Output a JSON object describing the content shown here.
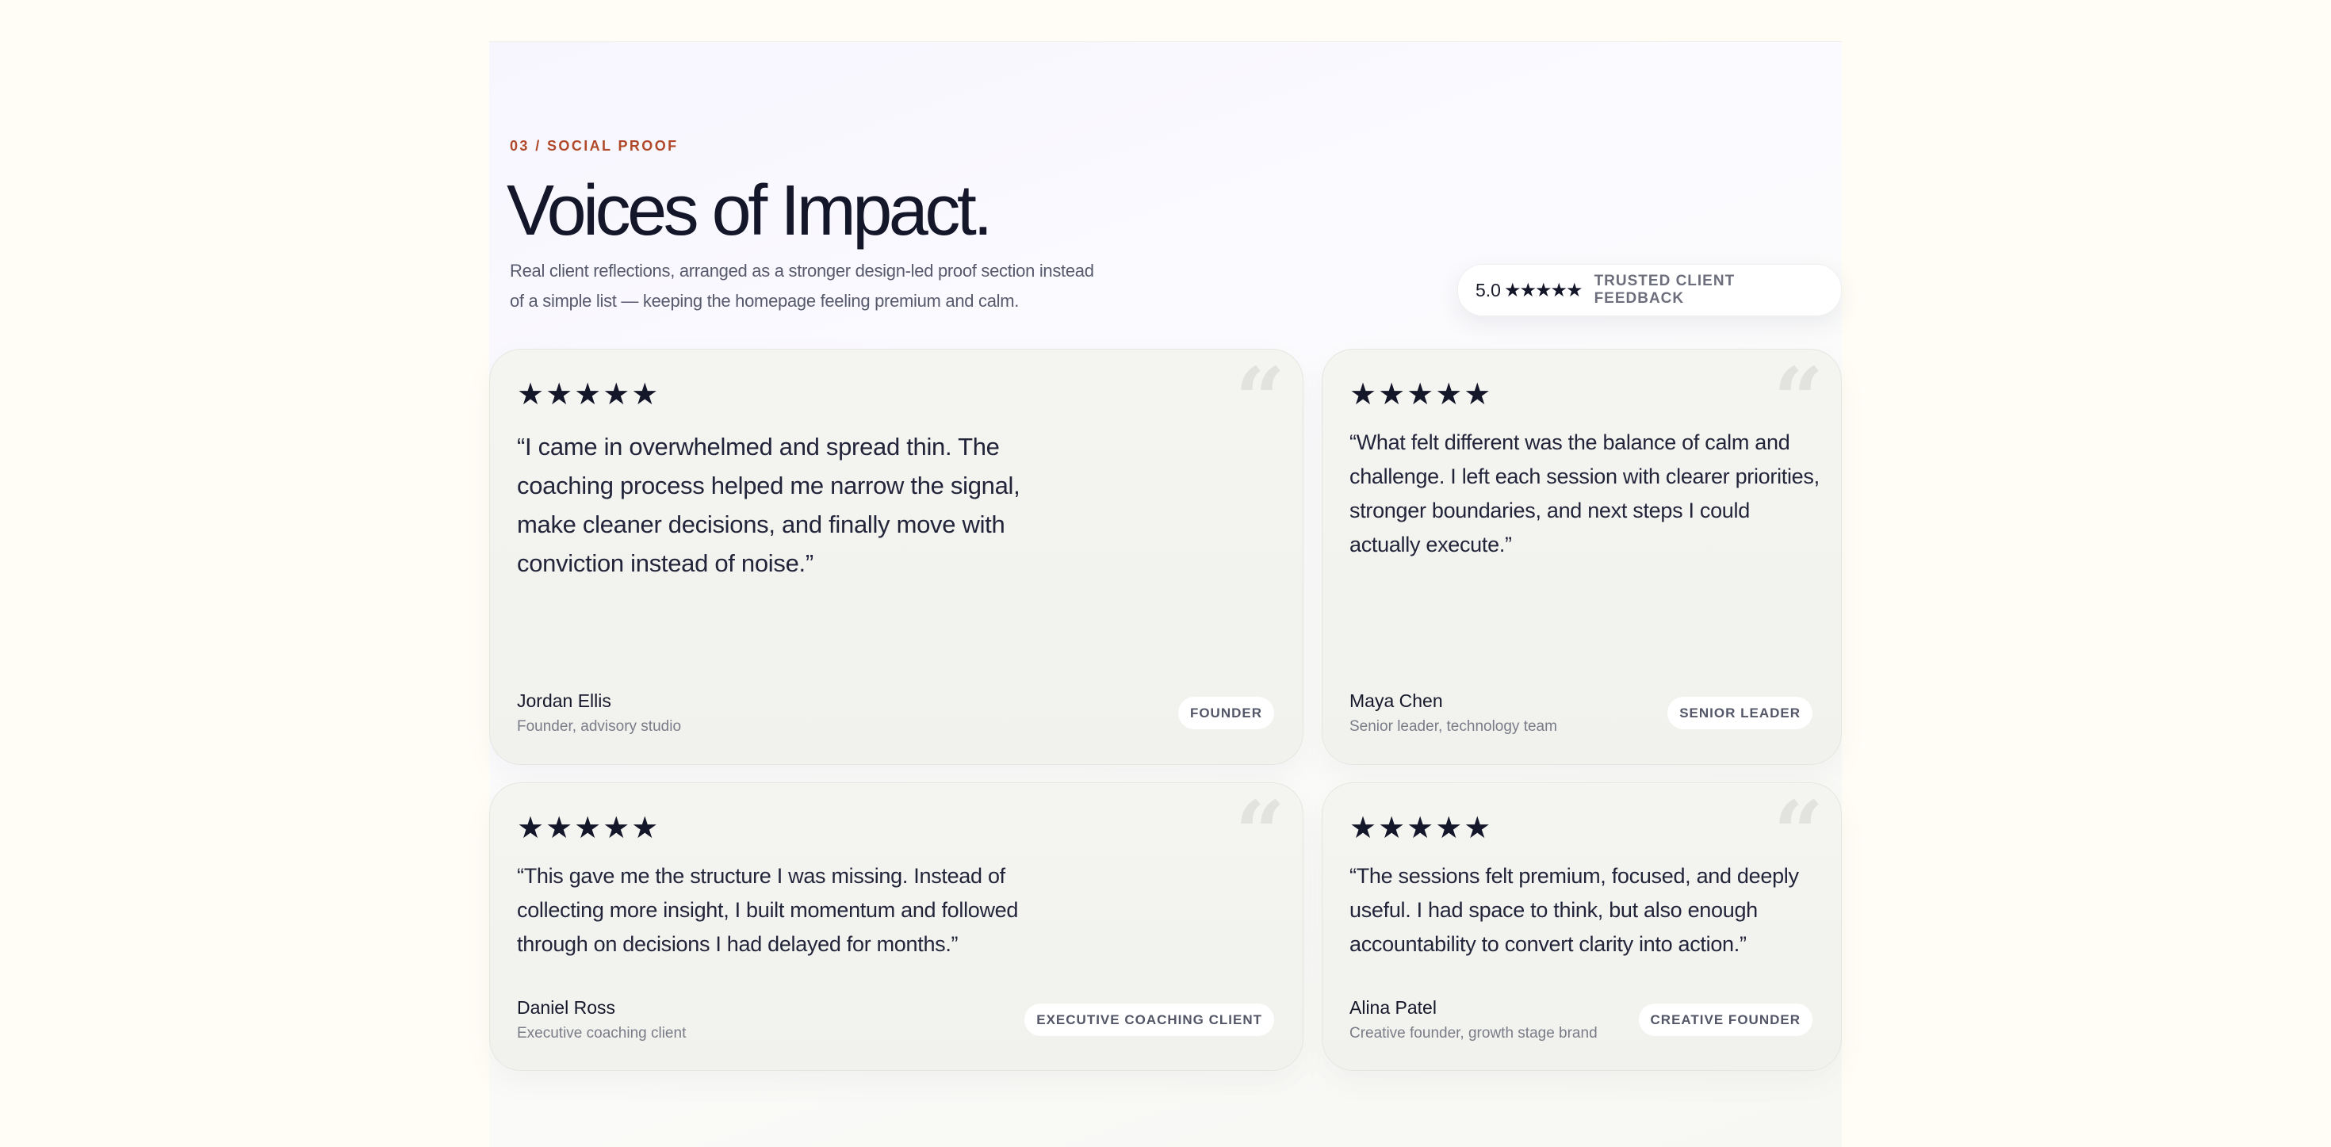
{
  "section": {
    "eyebrow": "03 / SOCIAL PROOF",
    "title": "Voices of Impact.",
    "subtitle": "Real client reflections, arranged as a stronger design-led proof section instead of a simple list — keeping the homepage feeling premium and calm."
  },
  "rating": {
    "score": "5.0",
    "stars": "★★★★★",
    "label": "TRUSTED CLIENT FEEDBACK"
  },
  "colors": {
    "accent": "#b0492a",
    "ink": "#141629",
    "page_bg": "#fffdf6",
    "card_bg": "#f3f3ef"
  },
  "testimonials": [
    {
      "stars": "★★★★★",
      "rating": 5,
      "quote_mark": "“",
      "quote": "“I came in overwhelmed and spread thin. The coaching process helped me narrow the signal, make cleaner decisions, and finally move with conviction instead of noise.”",
      "name": "Jordan Ellis",
      "role": "Founder, advisory studio",
      "tag": "FOUNDER"
    },
    {
      "stars": "★★★★★",
      "rating": 5,
      "quote_mark": "“",
      "quote": "“What felt different was the balance of calm and challenge. I left each session with clearer priorities, stronger boundaries, and next steps I could actually execute.”",
      "name": "Maya Chen",
      "role": "Senior leader, technology team",
      "tag": "SENIOR LEADER"
    },
    {
      "stars": "★★★★★",
      "rating": 5,
      "quote_mark": "“",
      "quote": "“This gave me the structure I was missing. Instead of collecting more insight, I built momentum and followed through on decisions I had delayed for months.”",
      "name": "Daniel Ross",
      "role": "Executive coaching client",
      "tag": "EXECUTIVE COACHING CLIENT"
    },
    {
      "stars": "★★★★★",
      "rating": 5,
      "quote_mark": "“",
      "quote": "“The sessions felt premium, focused, and deeply useful. I had space to think, but also enough accountability to convert clarity into action.”",
      "name": "Alina Patel",
      "role": "Creative founder, growth stage brand",
      "tag": "CREATIVE FOUNDER"
    }
  ]
}
